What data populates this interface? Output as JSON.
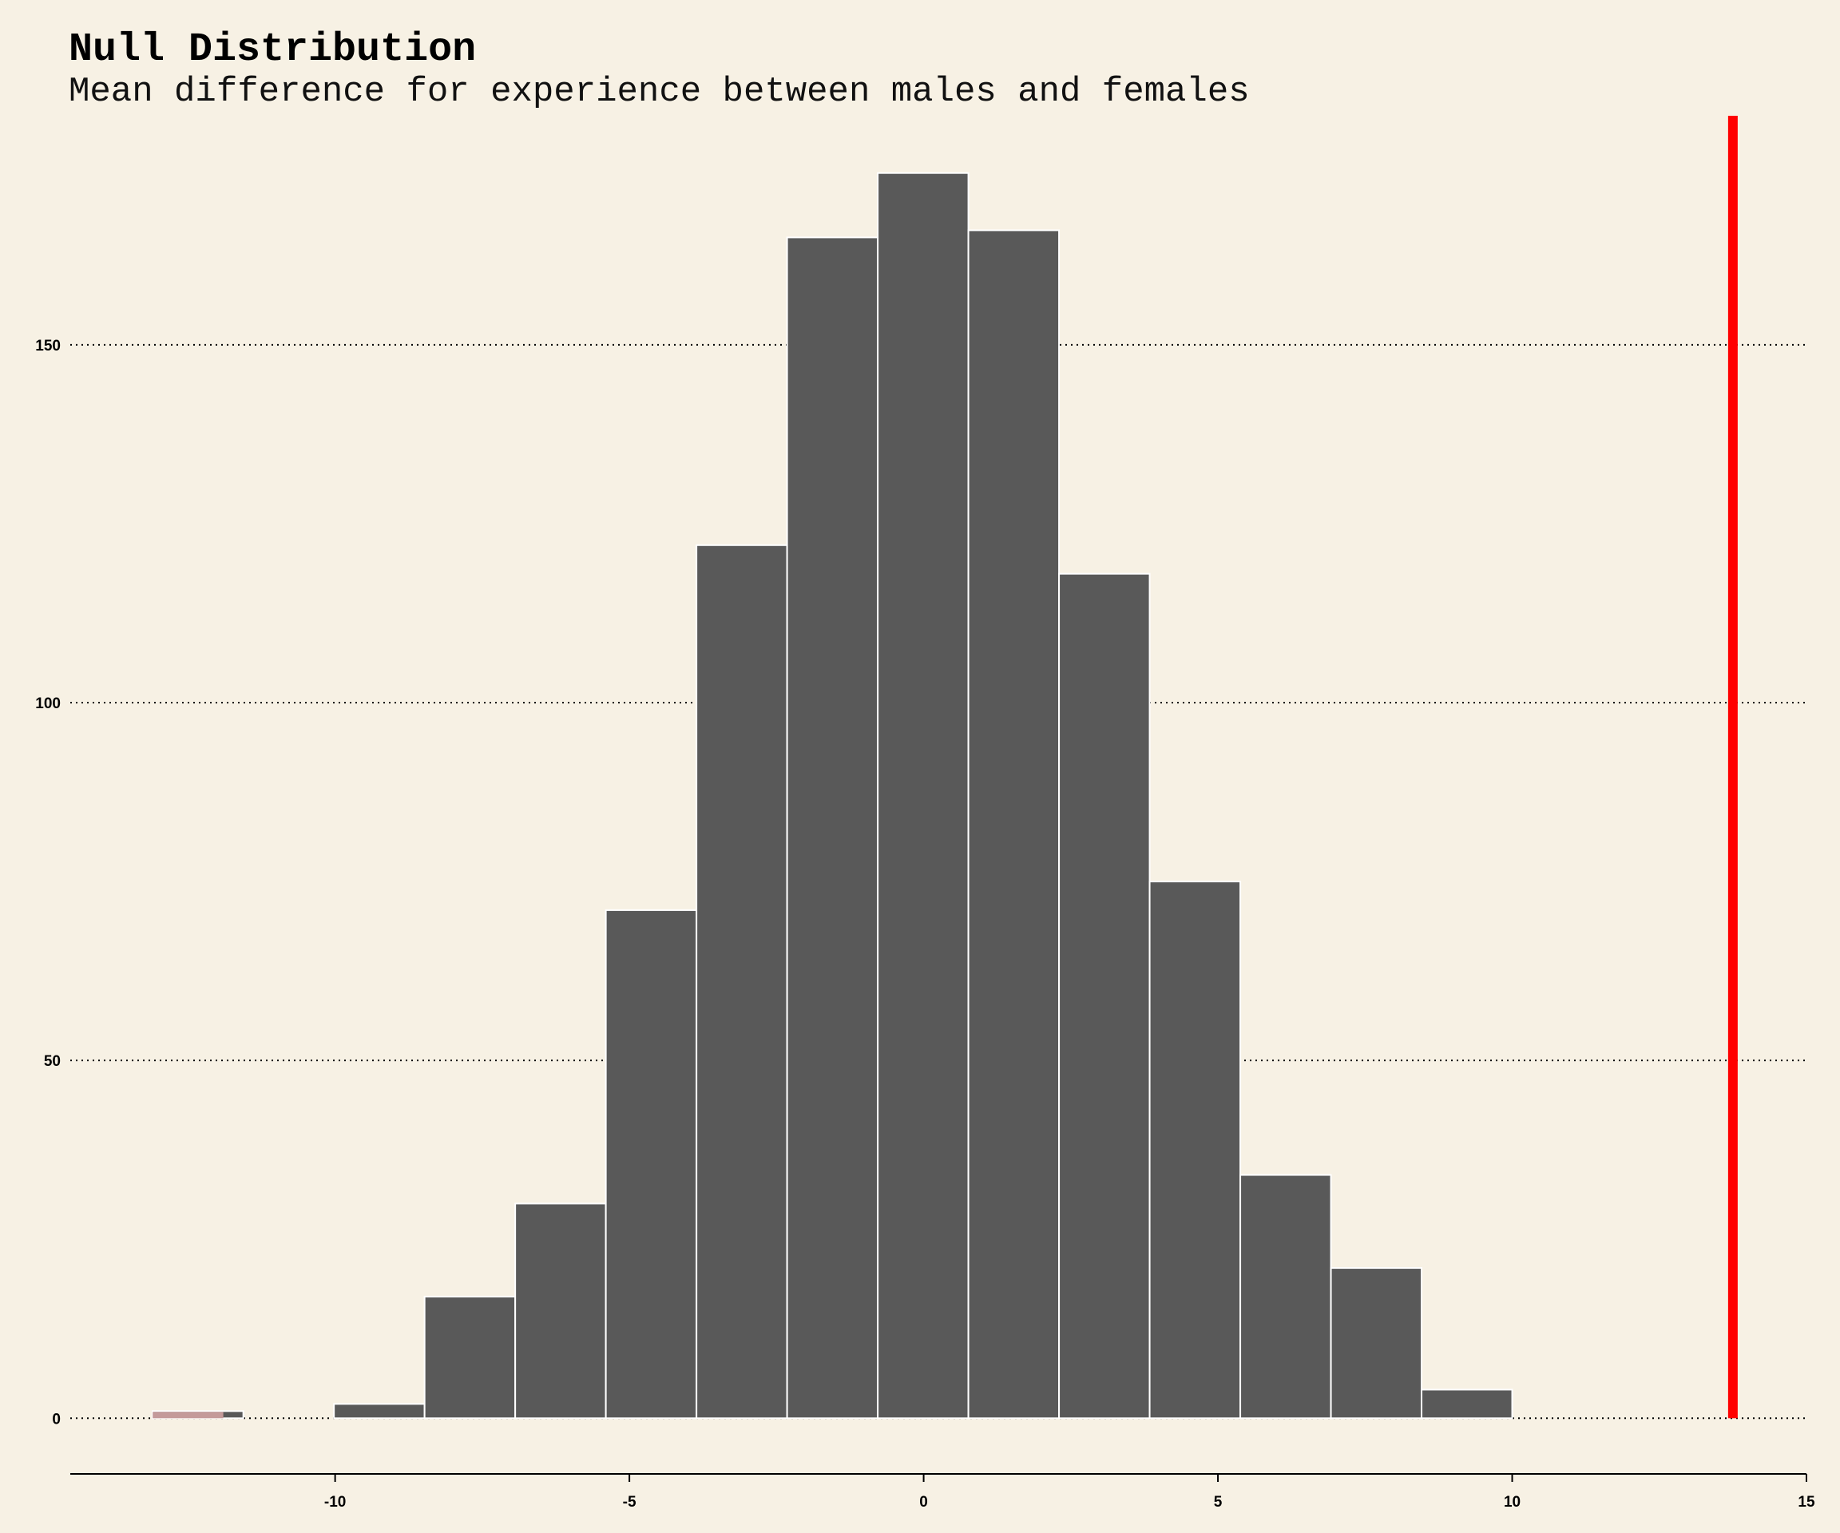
{
  "chart_data": {
    "type": "bar",
    "title": "Null Distribution",
    "subtitle": "Mean difference for experience between males and females",
    "xlabel": "",
    "ylabel": "",
    "xlim": [
      -14.5,
      15
    ],
    "ylim": [
      -8,
      182
    ],
    "x_ticks": [
      -10,
      -5,
      0,
      5,
      10,
      15
    ],
    "y_ticks": [
      0,
      50,
      100,
      150
    ],
    "grid": "horizontal-dotted",
    "bin_width": 1.54,
    "bins": [
      {
        "x0": -13.1,
        "x1": -11.56,
        "count": 1
      },
      {
        "x0": -11.56,
        "x1": -10.02,
        "count": 0
      },
      {
        "x0": -10.02,
        "x1": -8.48,
        "count": 2
      },
      {
        "x0": -8.48,
        "x1": -6.94,
        "count": 17
      },
      {
        "x0": -6.94,
        "x1": -5.4,
        "count": 30
      },
      {
        "x0": -5.4,
        "x1": -3.86,
        "count": 71
      },
      {
        "x0": -3.86,
        "x1": -2.32,
        "count": 122
      },
      {
        "x0": -2.32,
        "x1": -0.78,
        "count": 165
      },
      {
        "x0": -0.78,
        "x1": 0.76,
        "count": 174
      },
      {
        "x0": 0.76,
        "x1": 2.3,
        "count": 166
      },
      {
        "x0": 2.3,
        "x1": 3.84,
        "count": 118
      },
      {
        "x0": 3.84,
        "x1": 5.38,
        "count": 75
      },
      {
        "x0": 5.38,
        "x1": 6.92,
        "count": 34
      },
      {
        "x0": 6.92,
        "x1": 8.46,
        "count": 21
      },
      {
        "x0": 8.46,
        "x1": 10.0,
        "count": 4
      }
    ],
    "shaded_region": {
      "x0": -13.1,
      "x1": -11.9,
      "color": "#c49a9a"
    },
    "observed_statistic": {
      "x": 13.75,
      "color": "#ff0000"
    },
    "colors": {
      "background": "#f7f1e4",
      "bar": "#595959",
      "bar_border": "#ffffff",
      "line": "#ff0000"
    }
  }
}
